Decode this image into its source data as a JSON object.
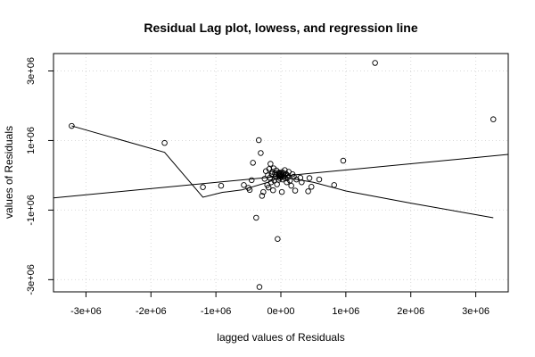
{
  "chart_data": {
    "type": "scatter",
    "title": "Residual Lag plot, lowess, and regression line",
    "xlabel": "lagged values of Residuals",
    "ylabel": "values of Residuals",
    "xlim": [
      -3500000,
      3500000
    ],
    "ylim": [
      -3350000,
      3500000
    ],
    "grid": true,
    "x_ticks": [
      {
        "value": -3000000,
        "label": "-3e+06"
      },
      {
        "value": -2000000,
        "label": "-2e+06"
      },
      {
        "value": -1000000,
        "label": "-1e+06"
      },
      {
        "value": 0,
        "label": "0e+00"
      },
      {
        "value": 1000000,
        "label": "1e+06"
      },
      {
        "value": 2000000,
        "label": "2e+06"
      },
      {
        "value": 3000000,
        "label": "3e+06"
      }
    ],
    "y_ticks": [
      {
        "value": -3000000,
        "label": "-3e+06"
      },
      {
        "value": -1000000,
        "label": "-1e+06"
      },
      {
        "value": 1000000,
        "label": "1e+06"
      },
      {
        "value": 3000000,
        "label": "3e+06"
      }
    ],
    "points": [
      [
        -3220000,
        1420000
      ],
      [
        -1790000,
        930000
      ],
      [
        -1200000,
        -340000
      ],
      [
        -920000,
        -300000
      ],
      [
        -570000,
        -280000
      ],
      [
        -500000,
        -360000
      ],
      [
        -480000,
        -420000
      ],
      [
        -450000,
        -140000
      ],
      [
        -430000,
        360000
      ],
      [
        -380000,
        -1220000
      ],
      [
        -340000,
        1010000
      ],
      [
        -330000,
        -3210000
      ],
      [
        -310000,
        640000
      ],
      [
        -290000,
        -590000
      ],
      [
        -270000,
        -480000
      ],
      [
        -250000,
        -100000
      ],
      [
        -230000,
        120000
      ],
      [
        -210000,
        -280000
      ],
      [
        -200000,
        0
      ],
      [
        -190000,
        -350000
      ],
      [
        -180000,
        180000
      ],
      [
        -170000,
        -70000
      ],
      [
        -160000,
        330000
      ],
      [
        -150000,
        -200000
      ],
      [
        -140000,
        40000
      ],
      [
        -130000,
        100000
      ],
      [
        -120000,
        -430000
      ],
      [
        -110000,
        200000
      ],
      [
        -100000,
        -150000
      ],
      [
        -90000,
        50000
      ],
      [
        -80000,
        -40000
      ],
      [
        -70000,
        140000
      ],
      [
        -60000,
        -260000
      ],
      [
        -50000,
        -1830000
      ],
      [
        -45000,
        40000
      ],
      [
        -35000,
        -130000
      ],
      [
        -30000,
        80000
      ],
      [
        -25000,
        -30000
      ],
      [
        -20000,
        20000
      ],
      [
        -15000,
        -80000
      ],
      [
        -10000,
        60000
      ],
      [
        -5000,
        -20000
      ],
      [
        0,
        30000
      ],
      [
        5000,
        -50000
      ],
      [
        10000,
        10000
      ],
      [
        15000,
        -480000
      ],
      [
        20000,
        90000
      ],
      [
        30000,
        -120000
      ],
      [
        40000,
        50000
      ],
      [
        50000,
        -30000
      ],
      [
        60000,
        150000
      ],
      [
        70000,
        -90000
      ],
      [
        80000,
        40000
      ],
      [
        90000,
        -200000
      ],
      [
        100000,
        0
      ],
      [
        110000,
        -60000
      ],
      [
        120000,
        100000
      ],
      [
        140000,
        -150000
      ],
      [
        160000,
        -300000
      ],
      [
        180000,
        30000
      ],
      [
        200000,
        -40000
      ],
      [
        220000,
        -440000
      ],
      [
        240000,
        -120000
      ],
      [
        300000,
        -70000
      ],
      [
        320000,
        -200000
      ],
      [
        420000,
        -460000
      ],
      [
        440000,
        -80000
      ],
      [
        470000,
        -330000
      ],
      [
        590000,
        -120000
      ],
      [
        820000,
        -280000
      ],
      [
        960000,
        420000
      ],
      [
        1450000,
        3230000
      ],
      [
        3270000,
        1610000
      ]
    ],
    "lowess": [
      [
        -3220000,
        1420000
      ],
      [
        -1790000,
        660000
      ],
      [
        -1200000,
        -630000
      ],
      [
        -900000,
        -490000
      ],
      [
        -600000,
        -420000
      ],
      [
        -200000,
        -200000
      ],
      [
        0,
        -40000
      ],
      [
        500000,
        -200000
      ],
      [
        1000000,
        -450000
      ],
      [
        2000000,
        -800000
      ],
      [
        3270000,
        -1220000
      ]
    ],
    "regression": [
      [
        -3500000,
        -650000
      ],
      [
        3500000,
        600000
      ]
    ]
  }
}
